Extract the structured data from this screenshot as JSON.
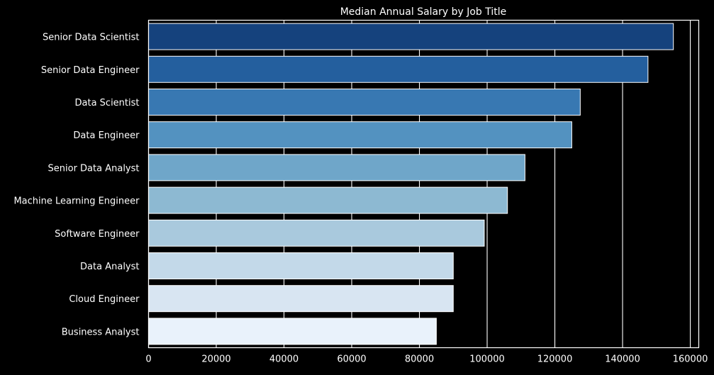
{
  "chart_data": {
    "type": "bar",
    "orientation": "horizontal",
    "title": "Median Annual Salary by Job Title",
    "xlabel": "",
    "ylabel": "",
    "categories": [
      "Senior Data Scientist",
      "Senior Data Engineer",
      "Data Scientist",
      "Data Engineer",
      "Senior Data Analyst",
      "Machine Learning Engineer",
      "Software Engineer",
      "Data Analyst",
      "Cloud Engineer",
      "Business Analyst"
    ],
    "values": [
      155000,
      147500,
      127500,
      125000,
      111175,
      106000,
      99150,
      90000,
      90000,
      85000
    ],
    "xlim": [
      0,
      162500
    ],
    "xticks": [
      0,
      20000,
      40000,
      60000,
      80000,
      100000,
      120000,
      140000,
      160000
    ],
    "xtick_labels": [
      "0",
      "20000",
      "40000",
      "60000",
      "80000",
      "100000",
      "120000",
      "140000",
      "160000"
    ],
    "grid": true,
    "colors": {
      "background": "#000000",
      "foreground": "#ffffff",
      "bars": [
        "#15427d",
        "#245f9e",
        "#3878b2",
        "#5392c0",
        "#6fa6c9",
        "#8db9d2",
        "#a9c9dd",
        "#c3d9e9",
        "#d8e5f2",
        "#e9f2fb"
      ]
    }
  }
}
